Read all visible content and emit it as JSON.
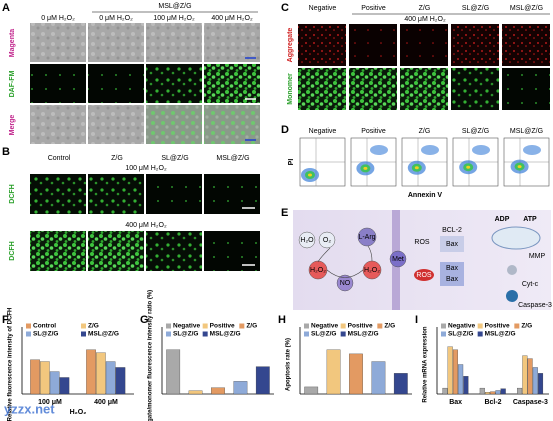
{
  "panel_labels": [
    "A",
    "B",
    "C",
    "D",
    "E",
    "F",
    "G",
    "H",
    "I"
  ],
  "panel_a": {
    "group_header": "MSL@Z/G",
    "columns": [
      "0 μM H₂O₂",
      "0 μM H₂O₂",
      "100 μM H₂O₂",
      "400 μM H₂O₂"
    ],
    "rows": [
      "Magenta",
      "DAF-FM",
      "Merge"
    ]
  },
  "panel_b": {
    "columns": [
      "Control",
      "Z/G",
      "SL@Z/G",
      "MSL@Z/G"
    ],
    "conditions": [
      "100 μM H₂O₂",
      "400 μM H₂O₂"
    ],
    "row_label": "DCFH"
  },
  "panel_c": {
    "columns": [
      "Negative",
      "Positive",
      "Z/G",
      "SL@Z/G",
      "MSL@Z/G"
    ],
    "condition": "400 μM H₂O₂",
    "rows": [
      "Aggregate",
      "Monomer"
    ]
  },
  "panel_d": {
    "columns": [
      "Negative",
      "Positive",
      "Z/G",
      "SL@Z/G",
      "MSL@Z/G"
    ],
    "x_label": "Annexin V",
    "y_label": "PI"
  },
  "panel_e": {
    "h2o": "H₂O",
    "o2": "O₂",
    "larg": "L-Arg",
    "h2o2_a": "H₂O₂",
    "no": "NO",
    "h2o2_b": "H₂O₂",
    "met": "Met",
    "ros_a": "ROS",
    "ros_b": "ROS",
    "bcl2": "BCL-2",
    "bax_a": "Bax",
    "bax_b": "Bax",
    "bax_c": "Bax",
    "adp": "ADP",
    "atp": "ATP",
    "mmp": "MMP",
    "cytc": "Cyt-c",
    "casp": "Caspase-3"
  },
  "chart_data": [
    {
      "type": "bar",
      "y_label": "Relative fluorescence intensity of DCFH",
      "x_label": "H₂O₂",
      "categories": [
        "100 μM",
        "400 μM"
      ],
      "ylim": [
        0,
        100
      ],
      "series": [
        {
          "name": "Control",
          "color": "#e39a62",
          "values": [
            58,
            75
          ]
        },
        {
          "name": "Z/G",
          "color": "#f2c77e",
          "values": [
            55,
            70
          ]
        },
        {
          "name": "SL@Z/G",
          "color": "#8eaad8",
          "values": [
            38,
            55
          ]
        },
        {
          "name": "MSL@Z/G",
          "color": "#34478f",
          "values": [
            28,
            45
          ]
        }
      ]
    },
    {
      "type": "bar",
      "y_label": "Aggregate/monomer fluorescence intensity ratio (%)",
      "categories": [
        "Negative",
        "Positive",
        "Z/G",
        "SL@Z/G",
        "MSL@Z/G"
      ],
      "values": [
        10.5,
        0.8,
        1.5,
        3,
        6.5
      ],
      "colors": [
        "#a9a9a9",
        "#f2c77e",
        "#e39a62",
        "#8eaad8",
        "#34478f"
      ],
      "ylim": [
        0,
        14
      ]
    },
    {
      "type": "bar",
      "y_label": "Apoptosis rate (%)",
      "categories": [
        "Negative",
        "Positive",
        "Z/G",
        "SL@Z/G",
        "MSL@Z/G"
      ],
      "values": [
        12,
        75,
        68,
        55,
        35
      ],
      "colors": [
        "#a9a9a9",
        "#f2c77e",
        "#e39a62",
        "#8eaad8",
        "#34478f"
      ],
      "ylim": [
        0,
        100
      ]
    },
    {
      "type": "bar",
      "y_label": "Relative mRNA expression",
      "categories": [
        "Bax",
        "Bcl-2",
        "Caspase-3"
      ],
      "ylim": [
        0,
        10
      ],
      "series": [
        {
          "name": "Negative",
          "color": "#a9a9a9",
          "values": [
            1,
            1,
            1
          ]
        },
        {
          "name": "Positive",
          "color": "#f2c77e",
          "values": [
            8,
            0.3,
            6.5
          ]
        },
        {
          "name": "Z/G",
          "color": "#e39a62",
          "values": [
            7.5,
            0.4,
            6
          ]
        },
        {
          "name": "SL@Z/G",
          "color": "#8eaad8",
          "values": [
            5,
            0.6,
            4.5
          ]
        },
        {
          "name": "MSL@Z/G",
          "color": "#34478f",
          "values": [
            3,
            0.9,
            3.5
          ]
        }
      ]
    }
  ],
  "watermark": "yzzx.net"
}
